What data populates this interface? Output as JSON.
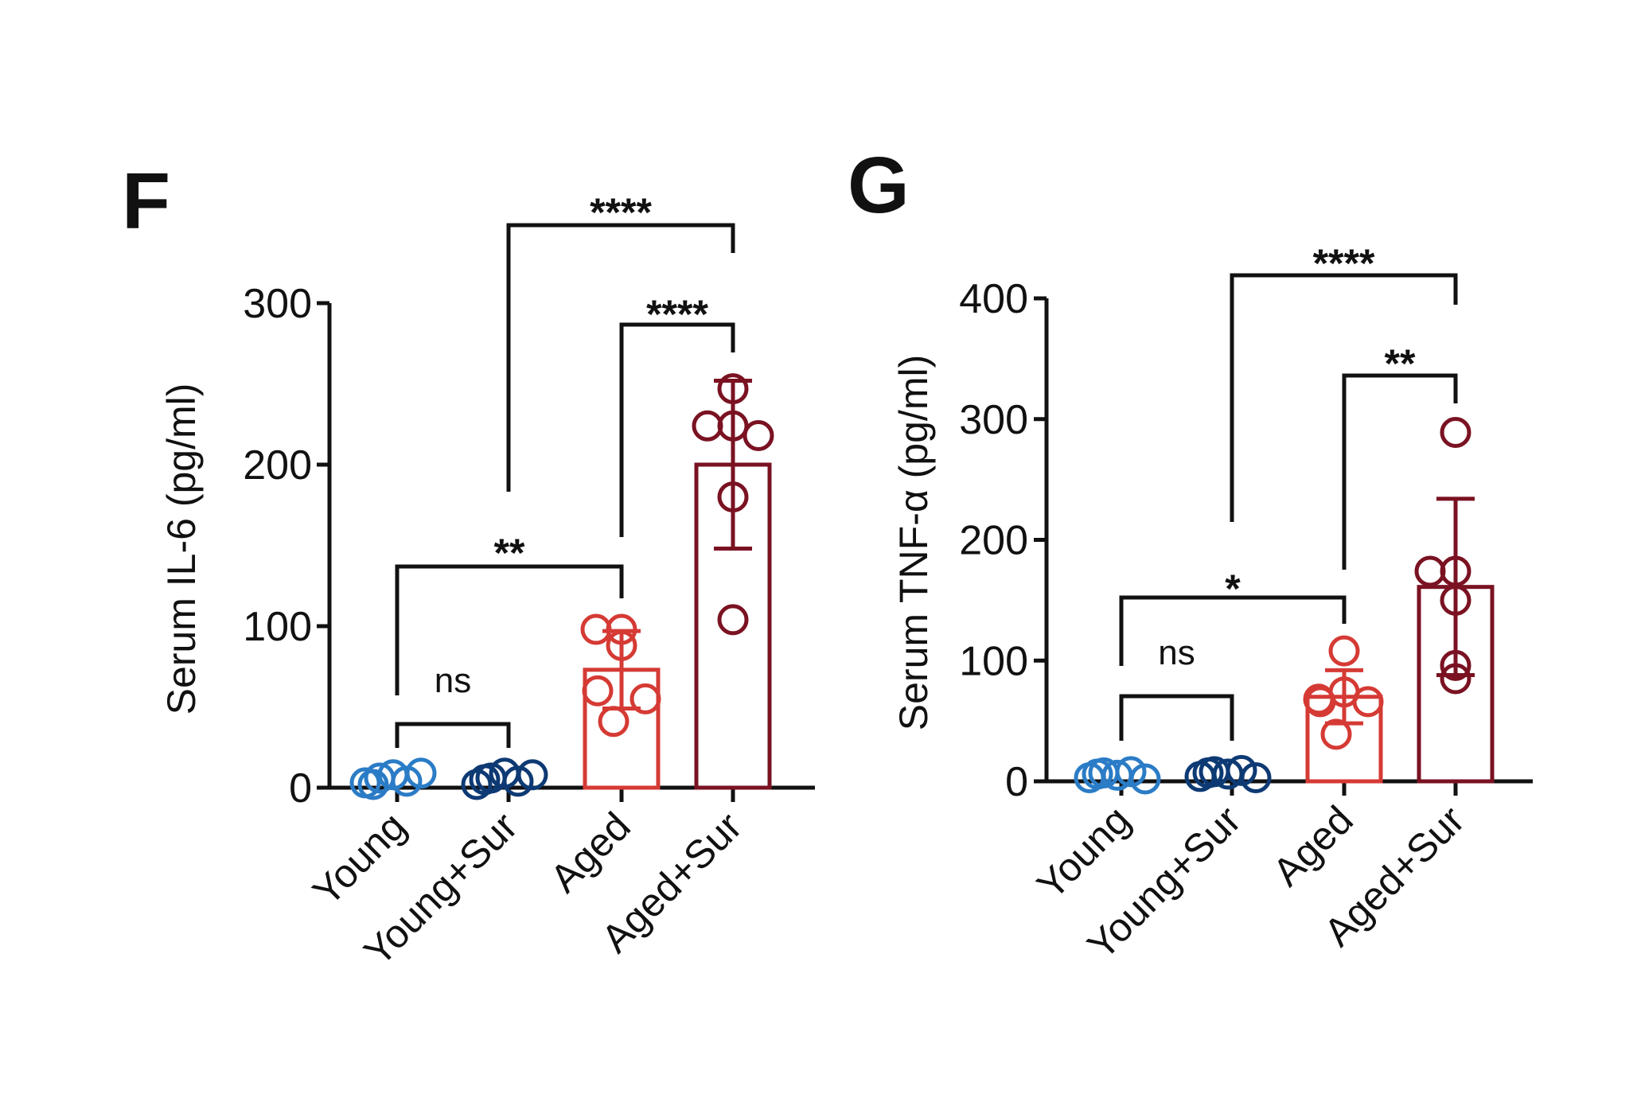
{
  "chart_data": [
    {
      "panel": "F",
      "type": "bar",
      "title": "",
      "xlabel": "",
      "ylabel": "Serum IL-6 (pg/ml)",
      "ylim": [
        0,
        300
      ],
      "yticks": [
        "0",
        "100",
        "200",
        "300"
      ],
      "categories": [
        "Young",
        "Young+Sur",
        "Aged",
        "Aged+Sur"
      ],
      "colors": [
        "#2b7cc6",
        "#0e3a74",
        "#d53a34",
        "#7a1222"
      ],
      "means": [
        5,
        5,
        73,
        200
      ],
      "sd": [
        3,
        3,
        24,
        52
      ],
      "points": [
        [
          3,
          6,
          8,
          4,
          9,
          2
        ],
        [
          2,
          6,
          9,
          4,
          8,
          5
        ],
        [
          98,
          98,
          88,
          60,
          55,
          41
        ],
        [
          247,
          224,
          224,
          218,
          180,
          104
        ]
      ],
      "comparisons": [
        {
          "from": "Young",
          "to": "Young+Sur",
          "label": "ns"
        },
        {
          "from": "Young",
          "to": "Aged",
          "label": "**"
        },
        {
          "from": "Aged",
          "to": "Aged+Sur",
          "label": "****"
        },
        {
          "from": "Young+Sur",
          "to": "Aged+Sur",
          "label": "****"
        }
      ]
    },
    {
      "panel": "G",
      "type": "bar",
      "title": "",
      "xlabel": "",
      "ylabel": "Serum TNF-α (pg/ml)",
      "ylim": [
        0,
        400
      ],
      "yticks": [
        "0",
        "100",
        "200",
        "300",
        "400"
      ],
      "categories": [
        "Young",
        "Young+Sur",
        "Aged",
        "Aged+Sur"
      ],
      "colors": [
        "#2b7cc6",
        "#0e3a74",
        "#d53a34",
        "#7a1222"
      ],
      "means": [
        5,
        6,
        70,
        161
      ],
      "sd": [
        3,
        3,
        22,
        73
      ],
      "points": [
        [
          3,
          7,
          5,
          8,
          2,
          6
        ],
        [
          4,
          8,
          6,
          9,
          3,
          7
        ],
        [
          108,
          74,
          68,
          66,
          66,
          39
        ],
        [
          289,
          174,
          174,
          150,
          96,
          85
        ]
      ],
      "comparisons": [
        {
          "from": "Young",
          "to": "Young+Sur",
          "label": "ns"
        },
        {
          "from": "Young",
          "to": "Aged",
          "label": "*"
        },
        {
          "from": "Aged",
          "to": "Aged+Sur",
          "label": "**"
        },
        {
          "from": "Young+Sur",
          "to": "Aged+Sur",
          "label": "****"
        }
      ]
    }
  ]
}
